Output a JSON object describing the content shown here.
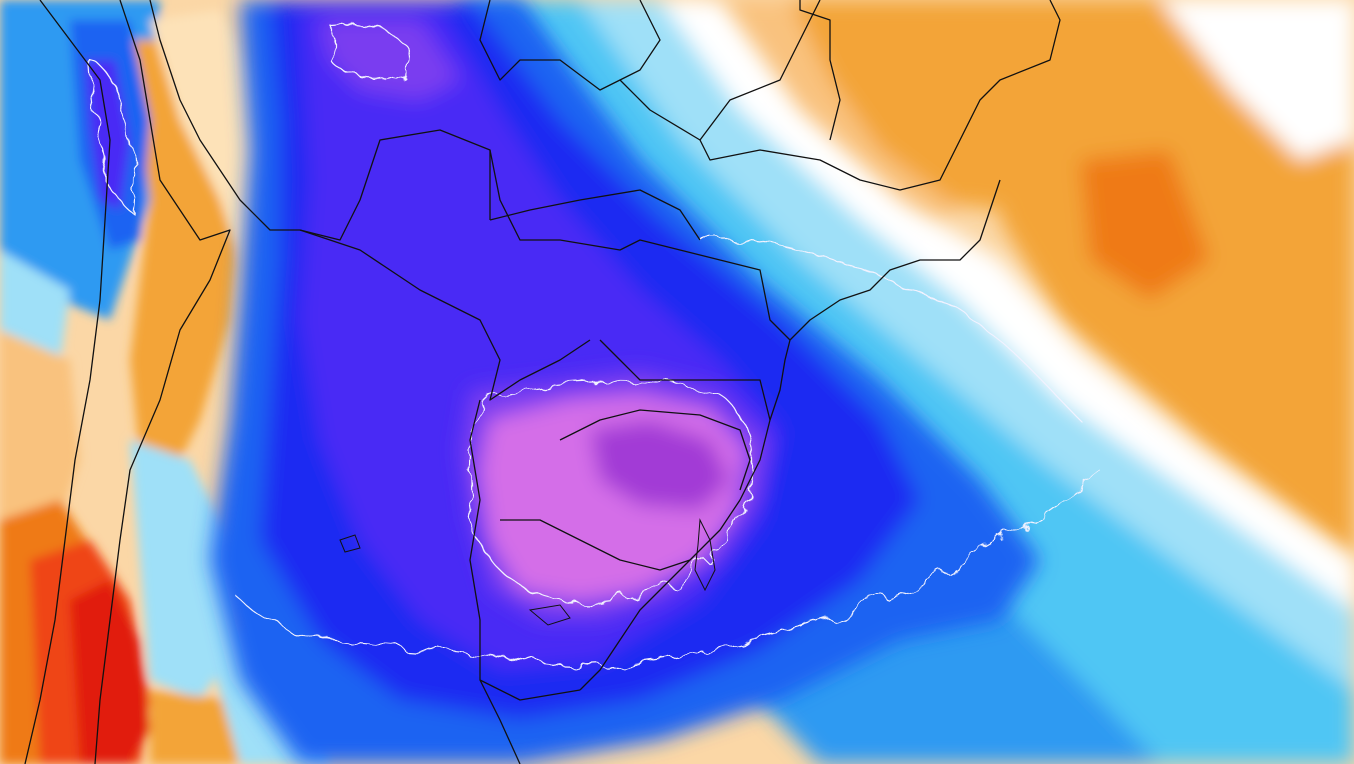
{
  "map": {
    "type": "temperature-anomaly-map",
    "region": "south-america",
    "colors": {
      "deep_magenta": "#a23ad6",
      "magenta": "#d46ee8",
      "violet": "#7a3cf0",
      "blue_violet": "#4a2cf5",
      "deep_blue": "#1f2af2",
      "blue": "#1c63f2",
      "sky_blue": "#2f9af2",
      "cyan": "#4fc6f4",
      "light_cyan": "#9fe0f8",
      "white": "#ffffff",
      "pale_orange": "#fde2b8",
      "light_orange": "#f9c27e",
      "orange": "#f3a437",
      "deep_orange": "#ef7a18",
      "red_orange": "#ef4512",
      "red": "#e11a0c",
      "contour_line": "#f2f2ff",
      "border_line": "#111111"
    }
  }
}
